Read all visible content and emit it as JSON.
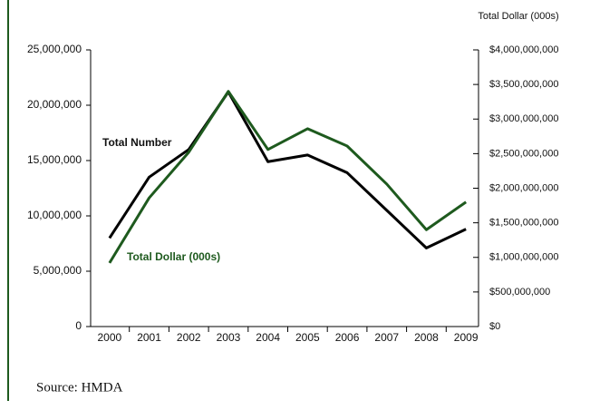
{
  "chart_data": {
    "type": "line",
    "categories": [
      "2000",
      "2001",
      "2002",
      "2003",
      "2004",
      "2005",
      "2006",
      "2007",
      "2008",
      "2009"
    ],
    "series": [
      {
        "name": "Total Number",
        "color": "#000000",
        "values": [
          8000000,
          13500000,
          16000000,
          21200000,
          14900000,
          15500000,
          13900000,
          10500000,
          7100000,
          8800000
        ]
      },
      {
        "name": "Total Dollar (000s)",
        "color": "#1e5a1e",
        "axis": "y2",
        "values": [
          920000000,
          1860000000,
          2520000000,
          3400000000,
          2560000000,
          2860000000,
          2610000000,
          2060000000,
          1400000000,
          1800000000
        ]
      }
    ],
    "ylim": [
      0,
      25000000
    ],
    "yticks": [
      0,
      {
        "value": 5000000,
        "label": "5,000,000"
      },
      {
        "value": 10000000,
        "label": "10,000,000"
      },
      {
        "value": 15000000,
        "label": "15,000,000"
      },
      {
        "value": 20000000,
        "label": "20,000,000"
      },
      {
        "value": 25000000,
        "label": "25,000,000"
      }
    ],
    "y2label": "Total Dollar (000s)",
    "y2lim": [
      0,
      4000000000
    ],
    "y2ticks": [
      {
        "value": 0,
        "label": "$0"
      },
      {
        "value": 500000000,
        "label": "$500,000,000"
      },
      {
        "value": 1000000000,
        "label": "$1,000,000,000"
      },
      {
        "value": 1500000000,
        "label": "$1,500,000,000"
      },
      {
        "value": 2000000000,
        "label": "$2,000,000,000"
      },
      {
        "value": 2500000000,
        "label": "$2,500,000,000"
      },
      {
        "value": 3000000000,
        "label": "$3,000,000,000"
      },
      {
        "value": 3500000000,
        "label": "$3,500,000,000"
      },
      {
        "value": 4000000000,
        "label": "$4,000,000,000"
      }
    ],
    "source": "Source: HMDA"
  }
}
